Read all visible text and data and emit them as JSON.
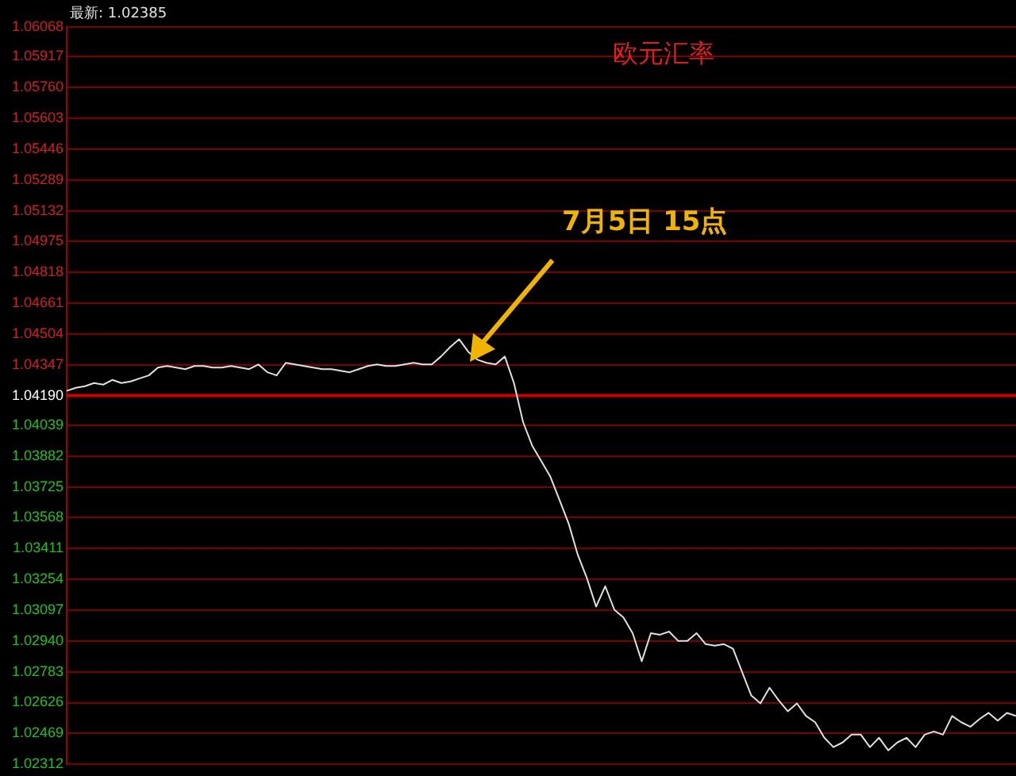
{
  "chart_data": {
    "type": "line",
    "title": "欧元汇率",
    "annotations": [
      "最新: 1.02385",
      "7月5日 15点"
    ],
    "categories": [
      null,
      null,
      null,
      null,
      null,
      null,
      null,
      null,
      null,
      null,
      null,
      null,
      null,
      null,
      null,
      null,
      null,
      null,
      null,
      null,
      null,
      null,
      null,
      null,
      null,
      null,
      null,
      null,
      null,
      null,
      null,
      null,
      null,
      null,
      null,
      null,
      null,
      null,
      null,
      null,
      null,
      null,
      null,
      null,
      null,
      null,
      null,
      null,
      null,
      null,
      null,
      null,
      null,
      null,
      null,
      null,
      null,
      null,
      null,
      null,
      null,
      null,
      null,
      null,
      null,
      null,
      null,
      null,
      null,
      null,
      null,
      null,
      null,
      null,
      null,
      null,
      null,
      null,
      null,
      null,
      null,
      null,
      null,
      null,
      null,
      null,
      null,
      null,
      null,
      null,
      null,
      null,
      null,
      null,
      null,
      null,
      null,
      null,
      null,
      null,
      null,
      null,
      null,
      null,
      null
    ],
    "series": [
      {
        "color": "#e0e0e0",
        "values": [
          1.04214,
          1.0423,
          1.04238,
          1.04254,
          1.04246,
          1.0427,
          1.04254,
          1.04262,
          1.04278,
          1.04293,
          1.04333,
          1.04341,
          1.04333,
          1.04325,
          1.04341,
          1.04341,
          1.04333,
          1.04333,
          1.04341,
          1.04333,
          1.04325,
          1.04349,
          1.04309,
          1.04293,
          1.04357,
          1.04349,
          1.04341,
          1.04333,
          1.04325,
          1.04325,
          1.04317,
          1.04309,
          1.04325,
          1.04341,
          1.04349,
          1.04341,
          1.04341,
          1.04349,
          1.04357,
          1.04349,
          1.04349,
          1.04389,
          1.04437,
          1.04477,
          1.04413,
          1.04373,
          1.04357,
          1.04349,
          1.04389,
          1.04254,
          1.04055,
          1.03935,
          1.03856,
          1.03776,
          1.03657,
          1.03537,
          1.03378,
          1.03259,
          1.03115,
          1.03219,
          1.03099,
          1.0306,
          1.0298,
          1.02837,
          1.0298,
          1.02972,
          1.02988,
          1.0294,
          1.0294,
          1.0298,
          1.02924,
          1.02916,
          1.02924,
          1.029,
          1.02781,
          1.02662,
          1.02622,
          1.02702,
          1.02638,
          1.02582,
          1.02622,
          1.02558,
          1.02526,
          1.02447,
          1.02399,
          1.02423,
          1.02463,
          1.02463,
          1.02399,
          1.02447,
          1.02383,
          1.02423,
          1.02447,
          1.02399,
          1.02463,
          1.02479,
          1.02463,
          1.02558,
          1.02526,
          1.02503,
          1.02542,
          1.02574,
          1.02534,
          1.02574,
          1.02558
        ]
      }
    ],
    "ylim": [
      1.02312,
      1.06068
    ],
    "yticks": [
      1.02312,
      1.02469,
      1.02626,
      1.02783,
      {
        "value": 1.0294,
        "label": "1.02940"
      },
      1.03097,
      1.03254,
      1.03411,
      1.03568,
      1.03725,
      1.03882,
      1.04039,
      {
        "value": 1.0419,
        "label": "1.04190"
      },
      1.04347,
      1.04504,
      1.04661,
      1.04818,
      1.04975,
      1.05132,
      1.05289,
      1.05446,
      1.05603,
      {
        "value": 1.0576,
        "label": "1.05760"
      },
      1.05917,
      1.06068
    ],
    "ref_lines": [
      {
        "axis": "y",
        "value": 1.0419,
        "color": "#d00000"
      }
    ],
    "grid": "y",
    "legend": false,
    "marker": "none",
    "line_style": "solid",
    "tick_labels": "y"
  }
}
